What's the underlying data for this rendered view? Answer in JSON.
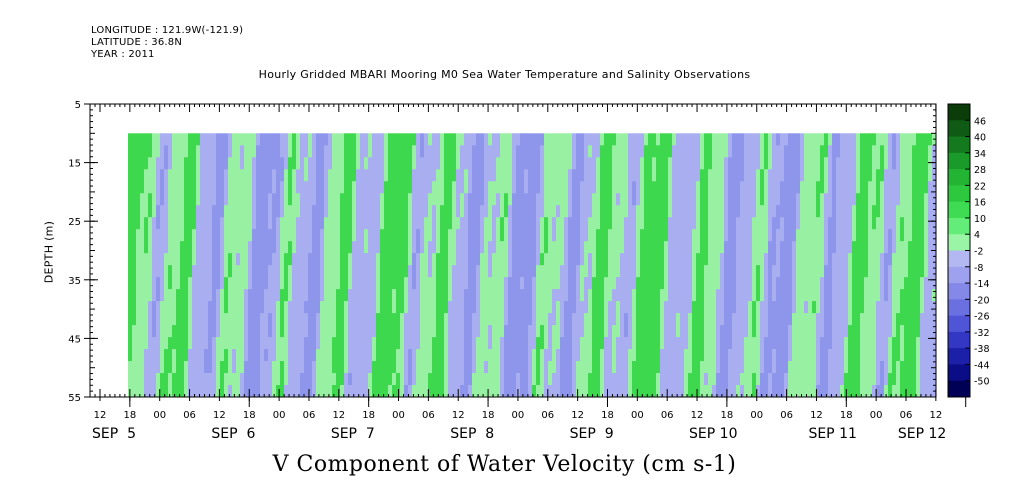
{
  "header": {
    "longitude": "LONGITUDE : 121.9W(-121.9)",
    "latitude": "LATITUDE : 36.8N",
    "year": "YEAR : 2011"
  },
  "chart_data": {
    "type": "heatmap",
    "title": "Hourly Gridded MBARI Mooring M0 Sea Water Temperature and Salinity Observations",
    "xlabel": "V Component of Water Velocity (cm s-1)",
    "ylabel": "DEPTH (m)",
    "y_ticks": [
      "5",
      "15",
      "25",
      "35",
      "45",
      "55"
    ],
    "ylim": [
      55,
      5
    ],
    "data_depth_range": [
      10,
      55
    ],
    "x_hour_ticks": [
      "12",
      "18",
      "00",
      "06",
      "12",
      "18",
      "00",
      "06",
      "12",
      "18",
      "00",
      "06",
      "12",
      "18",
      "00",
      "06",
      "12",
      "18",
      "00",
      "06",
      "12",
      "18",
      "00",
      "06",
      "12",
      "18",
      "00",
      "06",
      "12",
      "18",
      "00",
      "06"
    ],
    "x_day_labels": [
      "SEP  5",
      "SEP  6",
      "SEP  7",
      "SEP  8",
      "SEP  9",
      "SEP 10",
      "SEP 11",
      "SEP 12"
    ],
    "colorbar_labels": [
      "46",
      "40",
      "34",
      "28",
      "22",
      "16",
      "10",
      "4",
      "-2",
      "-8",
      "-14",
      "-20",
      "-26",
      "-32",
      "-38",
      "-44",
      "-50"
    ],
    "colorbar_colors": [
      "#0a3d0a",
      "#0f5a14",
      "#137a1d",
      "#1a9a28",
      "#24b434",
      "#2ec83e",
      "#3edc52",
      "#64ec78",
      "#9af5a6",
      "#b4b8f2",
      "#9ea2ee",
      "#8489e8",
      "#6b70e0",
      "#4f55d6",
      "#3238c4",
      "#1c20a8",
      "#0a0d86",
      "#000055"
    ],
    "colors": {
      "negative_mid": "#a8aef0",
      "negative_strong": "#8e96ec",
      "positive_mid": "#98f0a2",
      "positive_strong": "#3ed84e"
    }
  }
}
